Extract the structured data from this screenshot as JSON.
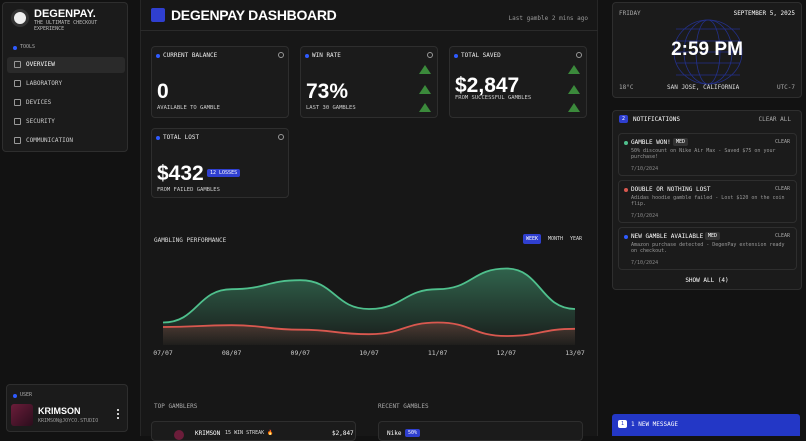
{
  "sidebar": {
    "brand": "DEGENPAY.",
    "tagline": "THE ULTIMATE CHECKOUT EXPERIENCE",
    "section": "TOOLS",
    "nav": [
      "OVERVIEW",
      "LABORATORY",
      "DEVICES",
      "SECURITY",
      "COMMUNICATION"
    ],
    "user_section": "USER",
    "user_name": "KRIMSON",
    "user_email": "KRIMSON@JOYCO.STUDIO"
  },
  "header": {
    "title": "DEGENPAY DASHBOARD",
    "status": "Last gamble 2 mins ago"
  },
  "stats": [
    {
      "label": "CURRENT BALANCE",
      "value": "0",
      "note": "AVAILABLE TO GAMBLE"
    },
    {
      "label": "WIN RATE",
      "value": "73%",
      "note": "LAST 30 GAMBLES"
    },
    {
      "label": "TOTAL SAVED",
      "value": "$2,847",
      "note": "FROM SUCCESSFUL GAMBLES"
    },
    {
      "label": "TOTAL LOST",
      "value": "$432",
      "badge": "12 LOSSES",
      "note": "FROM FAILED GAMBLES"
    }
  ],
  "performance": {
    "title": "GAMBLING PERFORMANCE",
    "tabs": [
      "WEEK",
      "MONTH",
      "YEAR"
    ],
    "categories": [
      "07/07",
      "08/07",
      "09/07",
      "10/07",
      "11/07",
      "12/07",
      "13/07"
    ],
    "ylim": [
      0,
      100
    ],
    "series": [
      {
        "color": "#4fc08d",
        "values": [
          25,
          62,
          72,
          40,
          62,
          85,
          40
        ]
      },
      {
        "color": "#d9584f",
        "values": [
          20,
          22,
          17,
          12,
          25,
          10,
          18
        ]
      }
    ]
  },
  "top_gamblers": {
    "title": "TOP GAMBLERS",
    "rows": [
      {
        "name": "KRIMSON",
        "streak": "15 WIN STREAK 🔥",
        "amount": "$2,847"
      }
    ]
  },
  "recent_gambles": {
    "title": "RECENT GAMBLES",
    "rows": [
      {
        "brand": "Nike",
        "discount": "50%"
      }
    ]
  },
  "clock": {
    "day": "FRIDAY",
    "date": "SEPTEMBER 5, 2025",
    "time": "2:59 PM",
    "temp": "18°C",
    "location": "SAN JOSE, CALIFORNIA",
    "zone": "UTC-7"
  },
  "notifications": {
    "count": "2",
    "title": "NOTIFICATIONS",
    "clear_all": "CLEAR ALL",
    "items": [
      {
        "title": "GAMBLE WON!",
        "tag": "MED",
        "action": "CLEAR",
        "text": "50% discount on Nike Air Max - Saved $75 on your purchase!",
        "date": "7/10/2024"
      },
      {
        "title": "DOUBLE OR NOTHING LOST",
        "action": "CLEAR",
        "text": "Adidas hoodie gamble failed - Lost $120 on the coin flip.",
        "date": "7/10/2024"
      },
      {
        "title": "NEW GAMBLE AVAILABLE",
        "tag": "MED",
        "action": "CLEAR",
        "text": "Amazon purchase detected - DegenPay extension ready on checkout.",
        "date": "7/10/2024"
      }
    ],
    "show_all": "SHOW ALL (4)"
  },
  "message": {
    "count": "1",
    "text": "1 NEW MESSAGE"
  }
}
